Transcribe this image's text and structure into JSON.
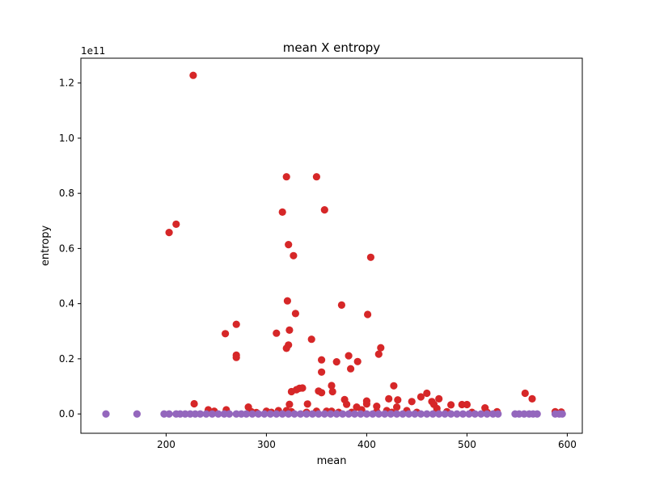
{
  "chart_data": {
    "type": "scatter",
    "title": "mean X entropy",
    "xlabel": "mean",
    "ylabel": "entropy",
    "offset_label": "1e11",
    "xlim": [
      115,
      615
    ],
    "ylim": [
      -0.07,
      1.29
    ],
    "x_ticks": [
      200,
      300,
      400,
      500,
      600
    ],
    "x_tick_labels": [
      "200",
      "300",
      "400",
      "500",
      "600"
    ],
    "y_ticks": [
      0.0,
      0.2,
      0.4,
      0.6,
      0.8,
      1.0,
      1.2
    ],
    "y_tick_labels": [
      "0.0",
      "0.2",
      "0.4",
      "0.6",
      "0.8",
      "1.0",
      "1.2"
    ],
    "grid": false,
    "series": [
      {
        "color": "#d62728",
        "points": [
          [
            227,
            1.228
          ],
          [
            203,
            0.658
          ],
          [
            210,
            0.688
          ],
          [
            320,
            0.86
          ],
          [
            350,
            0.86
          ],
          [
            316,
            0.732
          ],
          [
            358,
            0.74
          ],
          [
            322,
            0.614
          ],
          [
            327,
            0.574
          ],
          [
            404,
            0.568
          ],
          [
            321,
            0.41
          ],
          [
            375,
            0.395
          ],
          [
            329,
            0.364
          ],
          [
            401,
            0.361
          ],
          [
            270,
            0.325
          ],
          [
            323,
            0.304
          ],
          [
            310,
            0.293
          ],
          [
            259,
            0.291
          ],
          [
            345,
            0.271
          ],
          [
            322,
            0.25
          ],
          [
            320,
            0.238
          ],
          [
            414,
            0.24
          ],
          [
            412,
            0.217
          ],
          [
            270,
            0.213
          ],
          [
            270,
            0.205
          ],
          [
            382,
            0.211
          ],
          [
            355,
            0.196
          ],
          [
            391,
            0.19
          ],
          [
            370,
            0.189
          ],
          [
            384,
            0.164
          ],
          [
            355,
            0.152
          ],
          [
            427,
            0.102
          ],
          [
            365,
            0.103
          ],
          [
            366,
            0.081
          ],
          [
            333,
            0.093
          ],
          [
            336,
            0.094
          ],
          [
            330,
            0.088
          ],
          [
            325,
            0.081
          ],
          [
            352,
            0.083
          ],
          [
            355,
            0.077
          ],
          [
            460,
            0.075
          ],
          [
            472,
            0.055
          ],
          [
            454,
            0.062
          ],
          [
            431,
            0.051
          ],
          [
            465,
            0.045
          ],
          [
            422,
            0.055
          ],
          [
            445,
            0.045
          ],
          [
            378,
            0.052
          ],
          [
            400,
            0.047
          ],
          [
            558,
            0.075
          ],
          [
            565,
            0.055
          ],
          [
            228,
            0.037
          ],
          [
            323,
            0.035
          ],
          [
            341,
            0.036
          ],
          [
            400,
            0.036
          ],
          [
            484,
            0.033
          ],
          [
            495,
            0.034
          ],
          [
            500,
            0.034
          ],
          [
            467,
            0.035
          ],
          [
            380,
            0.035
          ],
          [
            390,
            0.025
          ],
          [
            410,
            0.028
          ],
          [
            430,
            0.025
          ],
          [
            518,
            0.022
          ],
          [
            282,
            0.025
          ],
          [
            242,
            0.015
          ],
          [
            260,
            0.015
          ],
          [
            248,
            0.01
          ],
          [
            300,
            0.01
          ],
          [
            312,
            0.012
          ],
          [
            320,
            0.012
          ],
          [
            360,
            0.01
          ],
          [
            365,
            0.01
          ],
          [
            395,
            0.015
          ],
          [
            420,
            0.012
          ],
          [
            440,
            0.012
          ],
          [
            470,
            0.01
          ],
          [
            530,
            0.008
          ],
          [
            588,
            0.008
          ],
          [
            594,
            0.007
          ],
          [
            470,
            0.02
          ],
          [
            350,
            0.01
          ],
          [
            285,
            0.008
          ],
          [
            290,
            0.005
          ],
          [
            305,
            0.006
          ],
          [
            340,
            0.006
          ],
          [
            372,
            0.006
          ],
          [
            385,
            0.006
          ],
          [
            410,
            0.008
          ],
          [
            425,
            0.006
          ],
          [
            450,
            0.006
          ],
          [
            480,
            0.008
          ],
          [
            505,
            0.006
          ],
          [
            520,
            0.006
          ],
          [
            325,
            0.008
          ]
        ]
      },
      {
        "color": "#9467bd",
        "points": [
          [
            140,
            0
          ],
          [
            171,
            0
          ],
          [
            198,
            0
          ],
          [
            203,
            0
          ],
          [
            210,
            0
          ],
          [
            214,
            0
          ],
          [
            219,
            0
          ],
          [
            224,
            0
          ],
          [
            229,
            0
          ],
          [
            234,
            0
          ],
          [
            240,
            0
          ],
          [
            246,
            0
          ],
          [
            252,
            0
          ],
          [
            258,
            0
          ],
          [
            263,
            0
          ],
          [
            270,
            0
          ],
          [
            275,
            0
          ],
          [
            280,
            0
          ],
          [
            286,
            0
          ],
          [
            292,
            0
          ],
          [
            298,
            0
          ],
          [
            304,
            0
          ],
          [
            310,
            0
          ],
          [
            316,
            0
          ],
          [
            322,
            0
          ],
          [
            328,
            0
          ],
          [
            334,
            0
          ],
          [
            340,
            0
          ],
          [
            346,
            0
          ],
          [
            352,
            0
          ],
          [
            358,
            0
          ],
          [
            364,
            0
          ],
          [
            370,
            0
          ],
          [
            376,
            0
          ],
          [
            382,
            0
          ],
          [
            388,
            0
          ],
          [
            394,
            0
          ],
          [
            400,
            0
          ],
          [
            406,
            0
          ],
          [
            412,
            0
          ],
          [
            418,
            0
          ],
          [
            424,
            0
          ],
          [
            430,
            0
          ],
          [
            436,
            0
          ],
          [
            442,
            0
          ],
          [
            448,
            0
          ],
          [
            454,
            0
          ],
          [
            460,
            0
          ],
          [
            466,
            0
          ],
          [
            472,
            0
          ],
          [
            478,
            0
          ],
          [
            484,
            0
          ],
          [
            490,
            0
          ],
          [
            496,
            0
          ],
          [
            502,
            0
          ],
          [
            508,
            0
          ],
          [
            514,
            0
          ],
          [
            520,
            0
          ],
          [
            526,
            0
          ],
          [
            531,
            0
          ],
          [
            548,
            0
          ],
          [
            552,
            0
          ],
          [
            557,
            0
          ],
          [
            562,
            0
          ],
          [
            566,
            0
          ],
          [
            570,
            0
          ],
          [
            588,
            0
          ],
          [
            592,
            0
          ],
          [
            595,
            0
          ]
        ]
      }
    ]
  }
}
